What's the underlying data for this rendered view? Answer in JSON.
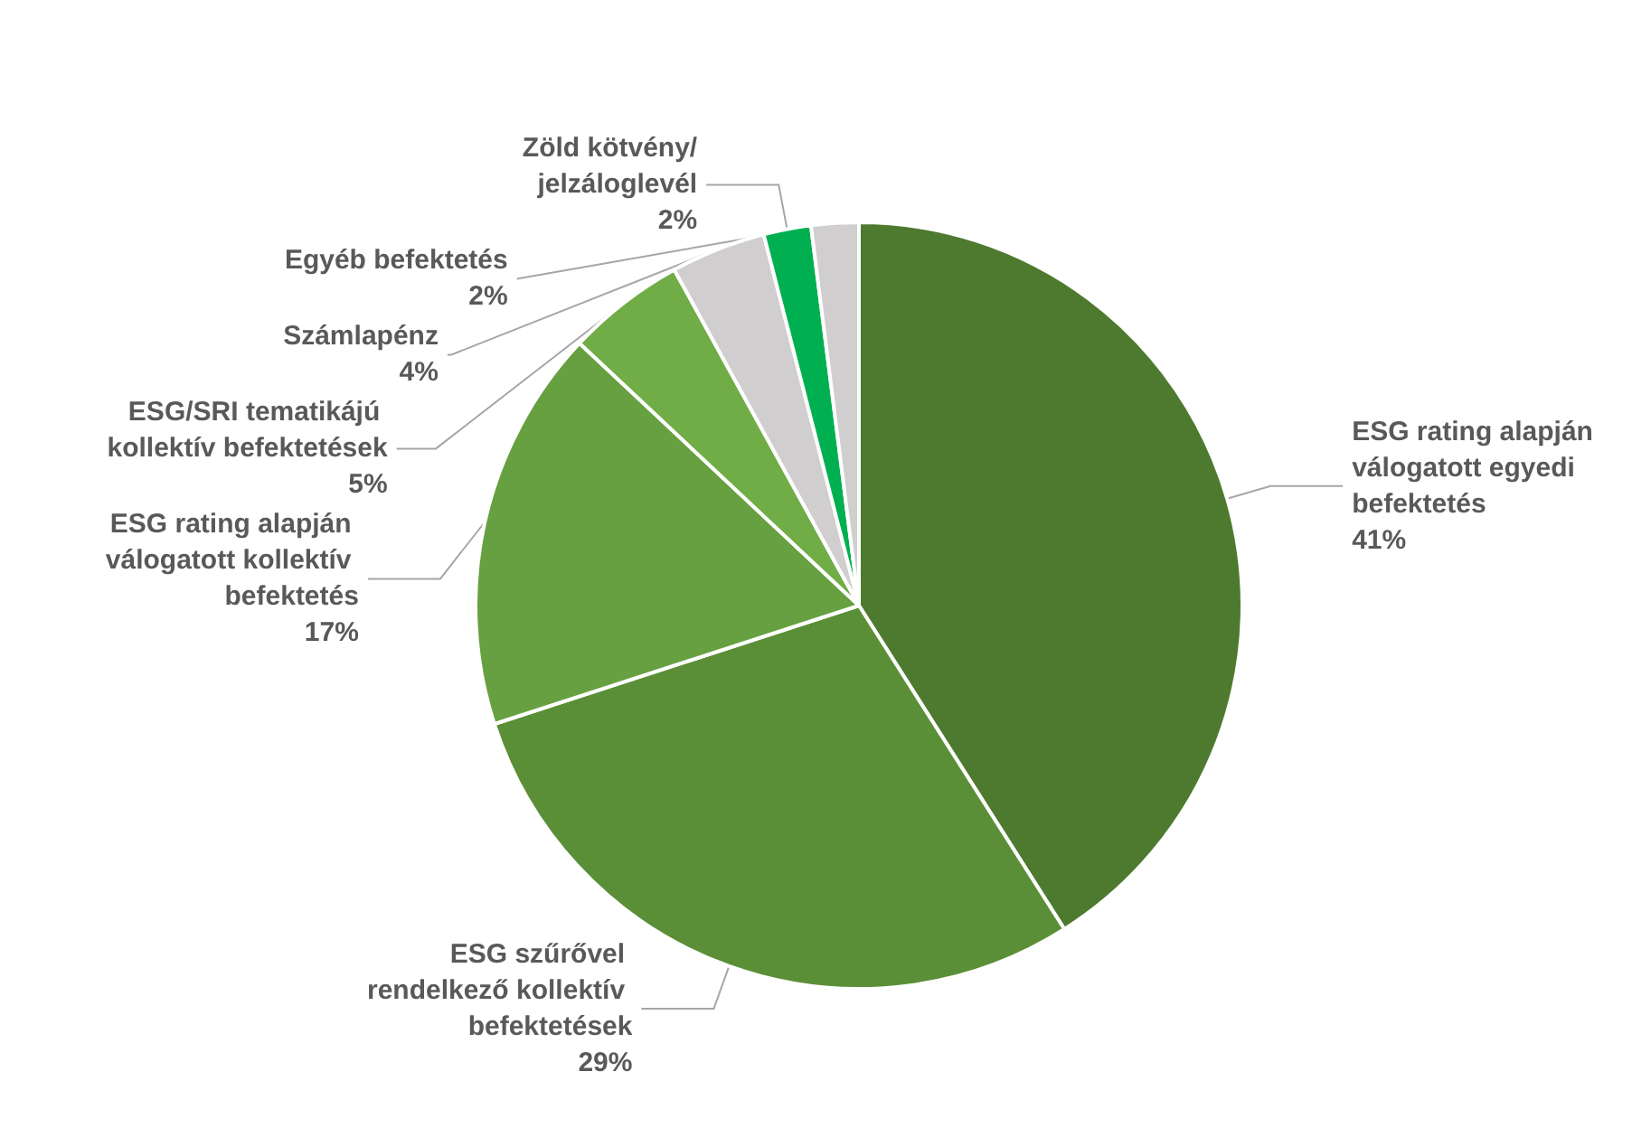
{
  "chart_data": {
    "type": "pie",
    "categories": [
      "ESG rating alapján válogatott egyedi befektetés",
      "ESG szűrővel rendelkező kollektív befektetések",
      "ESG rating alapján válogatott kollektív befektetés",
      "ESG/SRI tematikájú kollektív befektetések",
      "Számlapénz",
      "Zöld kötvény/jelzáloglevél",
      "Egyéb befektetés"
    ],
    "values": [
      41,
      29,
      17,
      5,
      4,
      2,
      2
    ],
    "value_labels": [
      "41%",
      "29%",
      "17%",
      "5%",
      "4%",
      "2%",
      "2%"
    ],
    "colors": [
      "#4e7a2f",
      "#5b8f37",
      "#67a040",
      "#70ad47",
      "#d0cece",
      "#00b050",
      "#d0cece"
    ],
    "legend": false
  }
}
